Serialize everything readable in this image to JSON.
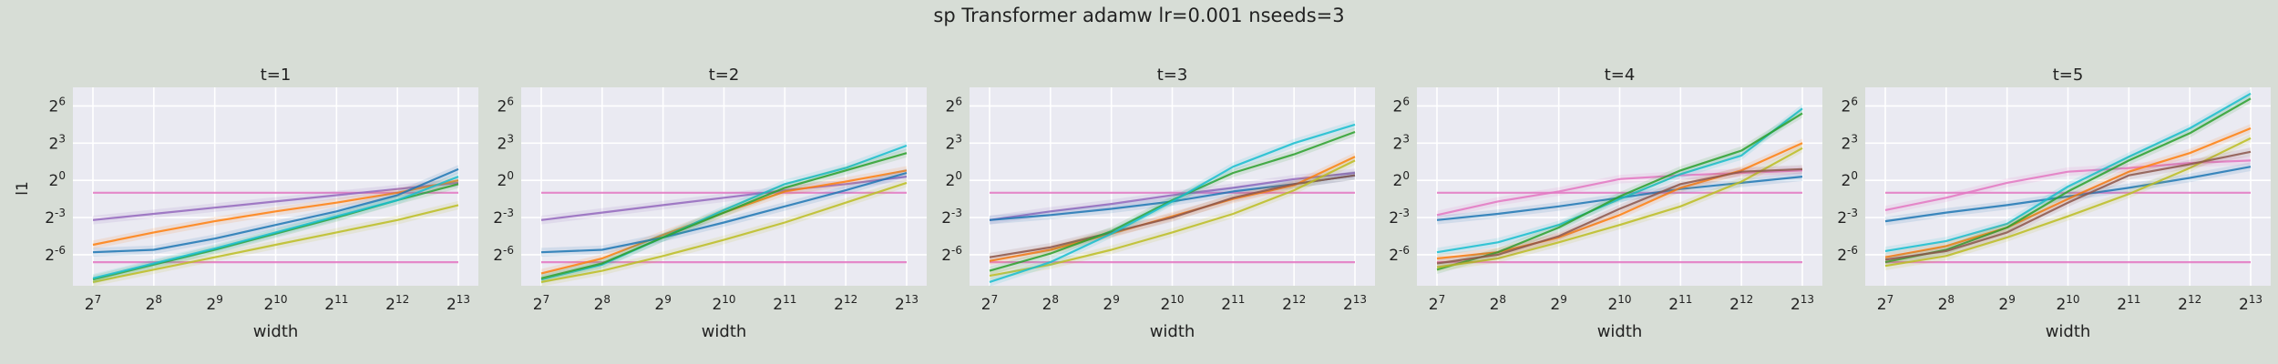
{
  "figure": {
    "title": "sp Transformer adamw lr=0.001 nseeds=3",
    "ylabel": "l1",
    "xlabel": "width"
  },
  "chart_data": {
    "type": "line",
    "x_scale": "log2",
    "y_scale": "log2",
    "x": [
      128,
      256,
      512,
      1024,
      2048,
      4096,
      8192
    ],
    "x_tick_labels": [
      [
        "2",
        "7"
      ],
      [
        "2",
        "8"
      ],
      [
        "2",
        "9"
      ],
      [
        "2",
        "10"
      ],
      [
        "2",
        "11"
      ],
      [
        "2",
        "12"
      ],
      [
        "2",
        "13"
      ]
    ],
    "y_tick_labels": [
      [
        "2",
        "-6"
      ],
      [
        "2",
        "-3"
      ],
      [
        "2",
        "0"
      ],
      [
        "2",
        "3"
      ],
      [
        "2",
        "6"
      ]
    ],
    "ylim_exp": [
      -8.5,
      7.5
    ],
    "grid": true,
    "colors": [
      "#1f77b4",
      "#ff7f0e",
      "#2ca02c",
      "#d62728",
      "#9467bd",
      "#8c564b",
      "#e377c2",
      "#7f7f7f",
      "#bcbd22",
      "#17becf"
    ],
    "panels": [
      {
        "title": "t=1",
        "series": [
          {
            "color": "#e377c2",
            "values_exp": [
              -1,
              -1,
              -1,
              -1,
              -1,
              -1,
              -1
            ]
          },
          {
            "color": "#e377c2",
            "values_exp": [
              -6.6,
              -6.6,
              -6.6,
              -6.6,
              -6.6,
              -6.6,
              -6.6
            ]
          },
          {
            "color": "#9467bd",
            "values_exp": [
              -3.2,
              -2.7,
              -2.2,
              -1.7,
              -1.2,
              -0.7,
              -0.2
            ]
          },
          {
            "color": "#ff7f0e",
            "values_exp": [
              -5.2,
              -4.2,
              -3.3,
              -2.5,
              -1.8,
              -1.0,
              0.0
            ]
          },
          {
            "color": "#1f77b4",
            "values_exp": [
              -5.8,
              -5.6,
              -4.7,
              -3.6,
              -2.5,
              -1.2,
              0.9
            ]
          },
          {
            "color": "#2ca02c",
            "values_exp": [
              -8.0,
              -6.8,
              -5.6,
              -4.3,
              -3.0,
              -1.6,
              -0.3
            ]
          },
          {
            "color": "#bcbd22",
            "values_exp": [
              -8.2,
              -7.2,
              -6.2,
              -5.2,
              -4.2,
              -3.2,
              -2.0
            ]
          },
          {
            "color": "#17becf",
            "values_exp": [
              -7.9,
              -6.7,
              -5.5,
              -4.2,
              -2.9,
              -1.6,
              0.3
            ]
          }
        ]
      },
      {
        "title": "t=2",
        "series": [
          {
            "color": "#e377c2",
            "values_exp": [
              -1,
              -1,
              -1,
              -1,
              -1,
              -1,
              -1
            ]
          },
          {
            "color": "#e377c2",
            "values_exp": [
              -6.6,
              -6.6,
              -6.6,
              -6.6,
              -6.6,
              -6.6,
              -6.6
            ]
          },
          {
            "color": "#9467bd",
            "values_exp": [
              -3.2,
              -2.6,
              -2.0,
              -1.4,
              -0.8,
              -0.3,
              0.3
            ]
          },
          {
            "color": "#ff7f0e",
            "values_exp": [
              -7.5,
              -6.3,
              -4.4,
              -2.6,
              -0.9,
              -0.1,
              0.8
            ]
          },
          {
            "color": "#1f77b4",
            "values_exp": [
              -5.8,
              -5.6,
              -4.6,
              -3.4,
              -2.1,
              -0.8,
              0.6
            ]
          },
          {
            "color": "#17becf",
            "values_exp": [
              -8.0,
              -6.8,
              -4.6,
              -2.4,
              -0.3,
              1.0,
              2.8
            ]
          },
          {
            "color": "#2ca02c",
            "values_exp": [
              -7.9,
              -6.7,
              -4.6,
              -2.6,
              -0.6,
              0.8,
              2.2
            ]
          },
          {
            "color": "#bcbd22",
            "values_exp": [
              -8.2,
              -7.3,
              -6.1,
              -4.8,
              -3.4,
              -1.8,
              -0.2
            ]
          }
        ]
      },
      {
        "title": "t=3",
        "series": [
          {
            "color": "#e377c2",
            "values_exp": [
              -1,
              -1,
              -1,
              -1,
              -1,
              -1,
              -1
            ]
          },
          {
            "color": "#e377c2",
            "values_exp": [
              -6.6,
              -6.6,
              -6.6,
              -6.6,
              -6.6,
              -6.6,
              -6.6
            ]
          },
          {
            "color": "#9467bd",
            "values_exp": [
              -3.2,
              -2.5,
              -1.9,
              -1.2,
              -0.6,
              0.1,
              0.6
            ]
          },
          {
            "color": "#1f77b4",
            "values_exp": [
              -3.2,
              -2.8,
              -2.3,
              -1.7,
              -0.9,
              -0.3,
              0.4
            ]
          },
          {
            "color": "#ff7f0e",
            "values_exp": [
              -6.5,
              -5.6,
              -4.3,
              -2.9,
              -1.5,
              -0.4,
              1.9
            ]
          },
          {
            "color": "#8c564b",
            "values_exp": [
              -6.2,
              -5.4,
              -4.2,
              -3.0,
              -1.4,
              -0.3,
              0.4
            ]
          },
          {
            "color": "#2ca02c",
            "values_exp": [
              -7.3,
              -5.9,
              -4.1,
              -1.6,
              0.6,
              2.1,
              3.9
            ]
          },
          {
            "color": "#bcbd22",
            "values_exp": [
              -7.7,
              -6.8,
              -5.6,
              -4.2,
              -2.7,
              -0.8,
              1.6
            ]
          },
          {
            "color": "#17becf",
            "values_exp": [
              -8.2,
              -6.6,
              -4.3,
              -1.7,
              1.1,
              3.0,
              4.5
            ]
          }
        ]
      },
      {
        "title": "t=4",
        "series": [
          {
            "color": "#e377c2",
            "values_exp": [
              -1,
              -1,
              -1,
              -1,
              -1,
              -1,
              -1
            ]
          },
          {
            "color": "#e377c2",
            "values_exp": [
              -6.6,
              -6.6,
              -6.6,
              -6.6,
              -6.6,
              -6.6,
              -6.6
            ]
          },
          {
            "color": "#e377c2",
            "values_exp": [
              -2.8,
              -1.7,
              -0.9,
              0.1,
              0.4,
              0.6,
              0.8
            ]
          },
          {
            "color": "#1f77b4",
            "values_exp": [
              -3.2,
              -2.7,
              -2.1,
              -1.4,
              -0.7,
              -0.2,
              0.3
            ]
          },
          {
            "color": "#17becf",
            "values_exp": [
              -5.8,
              -5.0,
              -3.6,
              -1.5,
              0.5,
              2.0,
              5.8
            ]
          },
          {
            "color": "#ff7f0e",
            "values_exp": [
              -6.3,
              -5.8,
              -4.6,
              -2.8,
              -0.6,
              0.8,
              3.0
            ]
          },
          {
            "color": "#2ca02c",
            "values_exp": [
              -7.2,
              -5.8,
              -3.8,
              -1.3,
              0.8,
              2.4,
              5.4
            ]
          },
          {
            "color": "#bcbd22",
            "values_exp": [
              -7.0,
              -6.3,
              -5.0,
              -3.6,
              -2.1,
              -0.1,
              2.6
            ]
          },
          {
            "color": "#8c564b",
            "values_exp": [
              -6.7,
              -6.0,
              -4.5,
              -2.3,
              -0.3,
              0.7,
              0.9
            ]
          }
        ]
      },
      {
        "title": "t=5",
        "series": [
          {
            "color": "#e377c2",
            "values_exp": [
              -1,
              -1,
              -1,
              -1,
              -1,
              -1,
              -1
            ]
          },
          {
            "color": "#e377c2",
            "values_exp": [
              -6.6,
              -6.6,
              -6.6,
              -6.6,
              -6.6,
              -6.6,
              -6.6
            ]
          },
          {
            "color": "#e377c2",
            "values_exp": [
              -2.4,
              -1.4,
              -0.2,
              0.7,
              1.0,
              1.4,
              1.6
            ]
          },
          {
            "color": "#1f77b4",
            "values_exp": [
              -3.3,
              -2.6,
              -2.0,
              -1.3,
              -0.6,
              0.2,
              1.1
            ]
          },
          {
            "color": "#17becf",
            "values_exp": [
              -5.7,
              -4.9,
              -3.5,
              -0.5,
              1.9,
              4.2,
              7.0
            ]
          },
          {
            "color": "#ff7f0e",
            "values_exp": [
              -6.2,
              -5.3,
              -3.8,
              -1.5,
              0.7,
              2.2,
              4.2
            ]
          },
          {
            "color": "#2ca02c",
            "values_exp": [
              -6.6,
              -5.6,
              -3.8,
              -0.9,
              1.6,
              3.8,
              6.6
            ]
          },
          {
            "color": "#bcbd22",
            "values_exp": [
              -6.9,
              -6.1,
              -4.6,
              -2.9,
              -1.1,
              1.0,
              3.4
            ]
          },
          {
            "color": "#8c564b",
            "values_exp": [
              -6.4,
              -5.7,
              -4.2,
              -1.8,
              0.4,
              1.3,
              2.3
            ]
          }
        ]
      }
    ]
  }
}
